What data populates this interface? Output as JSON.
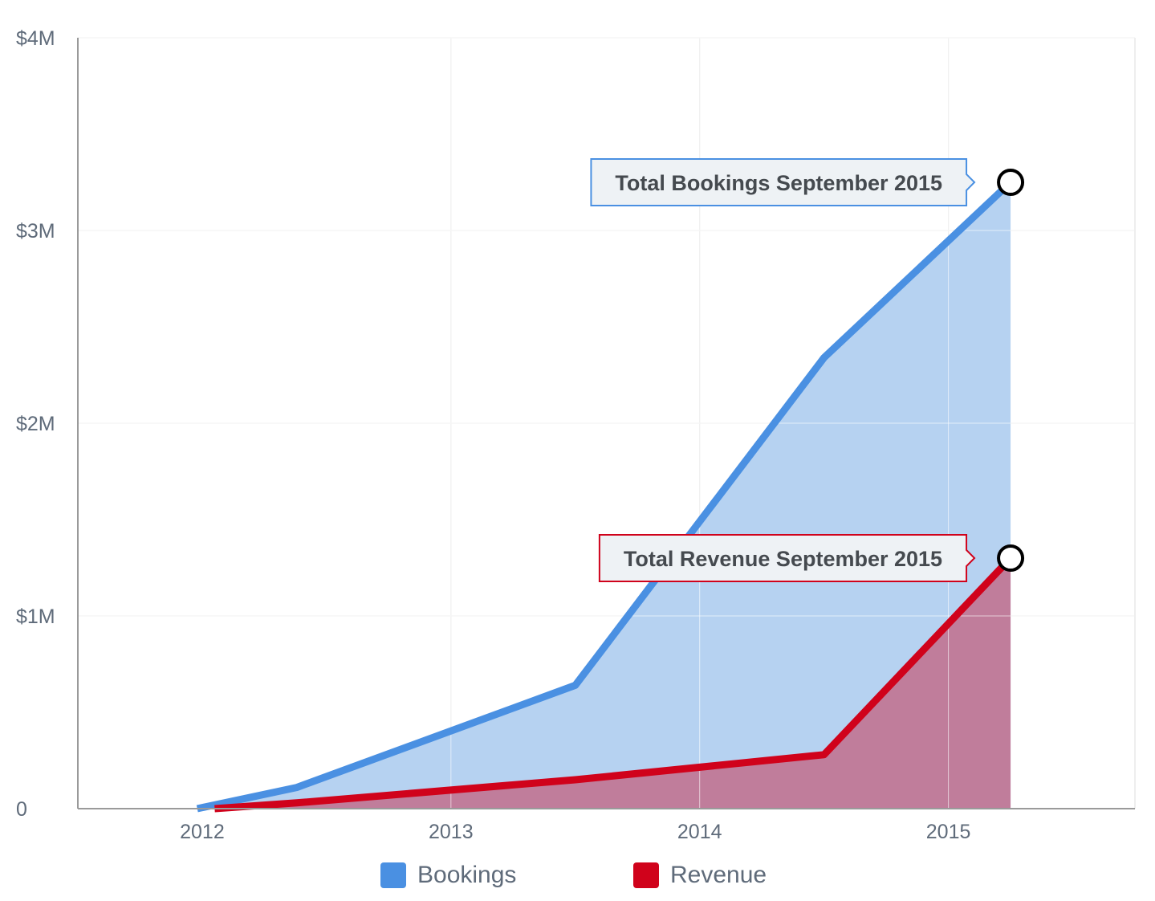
{
  "chart_data": {
    "type": "area",
    "x_ticks": [
      "2012",
      "2013",
      "2014",
      "2015"
    ],
    "y_ticks": [
      "0",
      "$1M",
      "$2M",
      "$3M",
      "$4M"
    ],
    "ylim": [
      0,
      4000000
    ],
    "x_unit": "year",
    "grid": true,
    "legend_position": "bottom-center",
    "series": [
      {
        "name": "Bookings",
        "color": "#4a90e2",
        "fill": "#b6d2f1",
        "points": [
          {
            "x": 2011.98,
            "y": 0
          },
          {
            "x": 2012.38,
            "y": 110000
          },
          {
            "x": 2013.5,
            "y": 640000
          },
          {
            "x": 2014.5,
            "y": 2340000
          },
          {
            "x": 2015.25,
            "y": 3250000
          }
        ]
      },
      {
        "name": "Revenue",
        "color": "#d0021b",
        "fill": "#c07d9b",
        "points": [
          {
            "x": 2012.05,
            "y": 0
          },
          {
            "x": 2012.38,
            "y": 30000
          },
          {
            "x": 2013.5,
            "y": 150000
          },
          {
            "x": 2014.5,
            "y": 280000
          },
          {
            "x": 2015.25,
            "y": 1300000
          }
        ]
      }
    ],
    "annotations": [
      {
        "text": "Total Bookings September 2015",
        "series": "Bookings",
        "color": "#4a90e2"
      },
      {
        "text": "Total Revenue September 2015",
        "series": "Revenue",
        "color": "#d0021b"
      }
    ]
  },
  "legend": [
    {
      "label": "Bookings",
      "color": "#4a90e2"
    },
    {
      "label": "Revenue",
      "color": "#d0021b"
    }
  ]
}
